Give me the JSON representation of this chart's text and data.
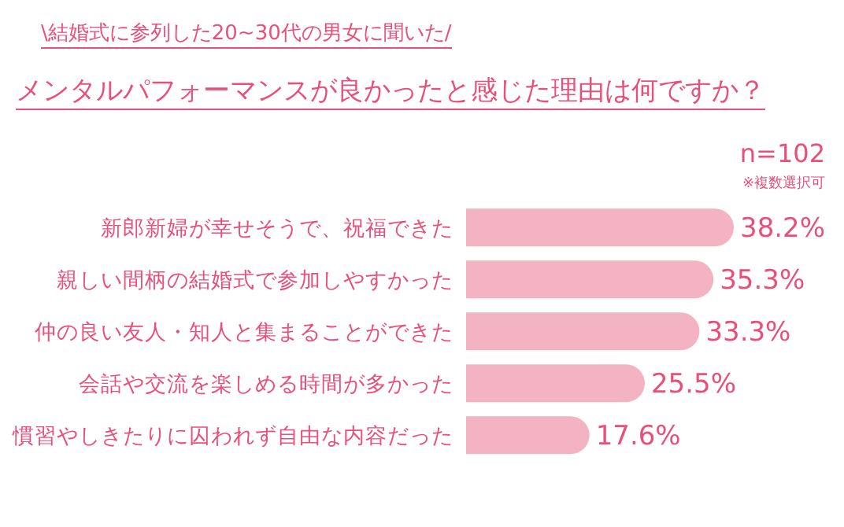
{
  "chart_data": {
    "type": "bar",
    "orientation": "horizontal",
    "subtitle": "\\結婚式に参列した20~30代の男女に聞いた/",
    "title": "メンタルパフォーマンスが良かったと感じた理由は何ですか？",
    "annotations": [
      "n=102",
      "※複数選択可"
    ],
    "categories": [
      "新郎新婦が幸せそうで、祝福できた",
      "親しい間柄の結婚式で参加しやすかった",
      "仲の良い友人・知人と集まることができた",
      "会話や交流を楽しめる時間が多かった",
      "慣習やしきたりに囚われず自由な内容だった"
    ],
    "values": [
      38.2,
      35.3,
      33.3,
      25.5,
      17.6
    ],
    "value_labels": [
      "38.2%",
      "35.3%",
      "33.3%",
      "25.5%",
      "17.6%"
    ],
    "color": "#f4b3c2",
    "grid": false,
    "legend": false
  }
}
